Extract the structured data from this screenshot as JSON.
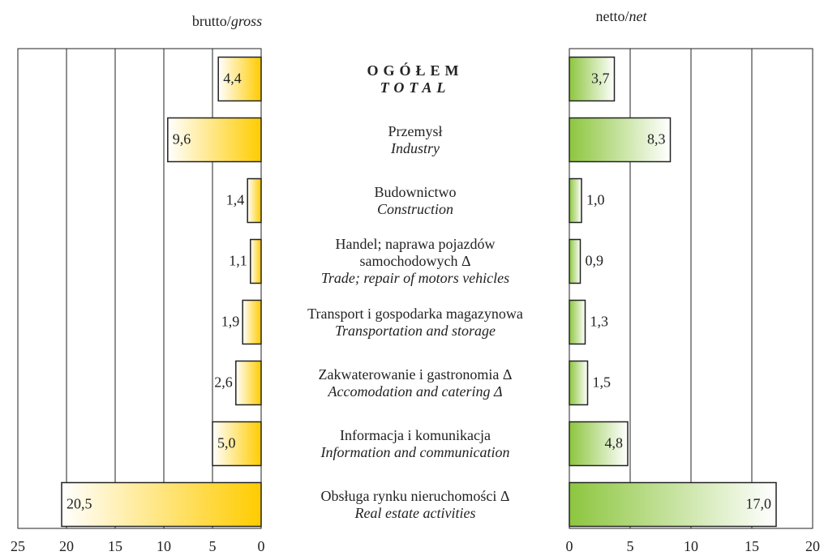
{
  "chart_data": [
    {
      "type": "bar",
      "orientation": "horizontal",
      "title": {
        "text": "brutto/",
        "italic": "gross"
      },
      "categories": [
        "OGÓŁEM",
        "Przemysł",
        "Budownictwo",
        "Handel; naprawa pojazdów samochodowych Δ",
        "Transport i gospodarka magazynowa",
        "Zakwaterowanie i gastronomia Δ",
        "Informacja i komunikacja",
        "Obsługa rynku nieruchomości Δ"
      ],
      "categories_en": [
        "TOTAL",
        "Industry",
        "Construction",
        "Trade; repair of motors vehicles",
        "Transportation and storage",
        "Accomodation and catering Δ",
        "Information and communication",
        "Real estate activities"
      ],
      "values": [
        4.4,
        9.6,
        1.4,
        1.1,
        1.9,
        2.6,
        5.0,
        20.5
      ],
      "value_labels": [
        "4,4",
        "9,6",
        "1,4",
        "1,1",
        "1,9",
        "2,6",
        "5,0",
        "20,5"
      ],
      "color": "#ffcc00",
      "xlim": [
        25,
        0
      ],
      "xticks": [
        25,
        20,
        15,
        10,
        5,
        0
      ],
      "grid": true
    },
    {
      "type": "bar",
      "orientation": "horizontal",
      "title": {
        "text": "netto/",
        "italic": "net"
      },
      "values": [
        3.7,
        8.3,
        1.0,
        0.9,
        1.3,
        1.5,
        4.8,
        17.0
      ],
      "value_labels": [
        "3,7",
        "8,3",
        "1,0",
        "0,9",
        "1,3",
        "1,5",
        "4,8",
        "17,0"
      ],
      "color": "#8dc63f",
      "xlim": [
        0,
        20
      ],
      "xticks": [
        0,
        5,
        10,
        15,
        20
      ],
      "grid": true
    }
  ]
}
